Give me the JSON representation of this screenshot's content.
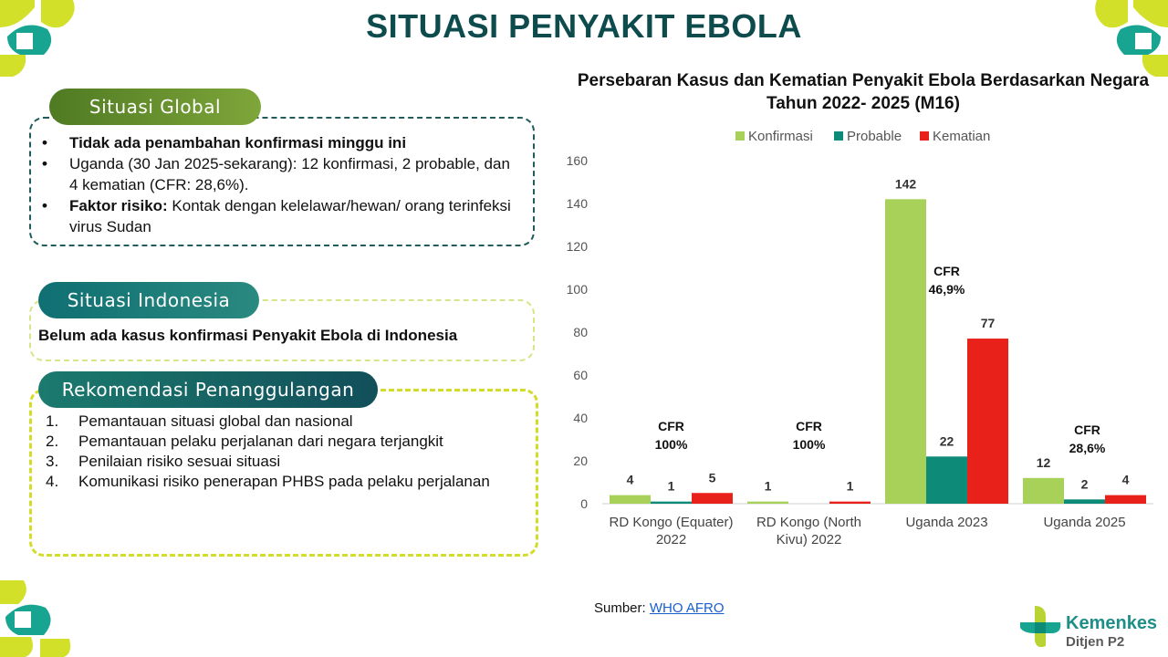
{
  "page_title": "SITUASI PENYAKIT EBOLA",
  "global": {
    "label": "Situasi Global",
    "items": [
      {
        "bold": "Tidak ada penambahan konfirmasi minggu ini",
        "text": ""
      },
      {
        "bold": "",
        "text": "Uganda (30 Jan 2025-sekarang): 12 konfirmasi, 2 probable, dan 4 kematian (CFR: 28,6%)."
      },
      {
        "bold": "Faktor risiko:",
        "text": " Kontak dengan kelelawar/hewan/ orang terinfeksi virus Sudan"
      }
    ]
  },
  "indonesia": {
    "label": "Situasi Indonesia",
    "text": "Belum ada kasus konfirmasi Penyakit Ebola di Indonesia"
  },
  "rekomendasi": {
    "label": "Rekomendasi Penanggulangan",
    "items": [
      {
        "num": "1.",
        "text": "Pemantauan situasi global dan nasional"
      },
      {
        "num": "2.",
        "text": "Pemantauan pelaku perjalanan dari negara terjangkit"
      },
      {
        "num": "3.",
        "text": "Penilaian risiko sesuai situasi"
      },
      {
        "num": "4.",
        "text": "Komunikasi risiko penerapan PHBS pada pelaku perjalanan"
      }
    ]
  },
  "colors": {
    "konfirmasi": "#a8d15a",
    "probable": "#0e8b78",
    "kematian": "#e8221a",
    "title": "#0d4b4d",
    "pill_global": "#6d9532",
    "pill_indonesia": "#1a7a78",
    "pill_rek": "#1f6f6e",
    "border_dark": "#1f5c5a",
    "border_lime": "#d6e58a",
    "border_yellow": "#d4dc2a"
  },
  "chart_data": {
    "type": "bar",
    "title": "Persebaran Kasus dan Kematian Penyakit Ebola Berdasarkan Negara Tahun 2022- 2025 (M16)",
    "categories": [
      [
        "RD Kongo (Equater)",
        "2022"
      ],
      [
        "RD Kongo (North",
        "Kivu) 2022"
      ],
      [
        "Uganda 2023"
      ],
      [
        "Uganda 2025"
      ]
    ],
    "series": [
      {
        "name": "Konfirmasi",
        "values": [
          4,
          1,
          142,
          12
        ],
        "labels": [
          "4",
          "1",
          "142",
          "12"
        ]
      },
      {
        "name": "Probable",
        "values": [
          1,
          0,
          22,
          2
        ],
        "labels": [
          "1",
          "",
          "22",
          "2"
        ]
      },
      {
        "name": "Kematian",
        "values": [
          5,
          1,
          77,
          4
        ],
        "labels": [
          "5",
          "1",
          "77",
          "4"
        ]
      }
    ],
    "annotations": [
      {
        "line1": "CFR",
        "line2": "100%"
      },
      {
        "line1": "CFR",
        "line2": "100%"
      },
      {
        "line1": "CFR",
        "line2": "46,9%"
      },
      {
        "line1": "CFR",
        "line2": "28,6%"
      }
    ],
    "yticks": [
      "0",
      "20",
      "40",
      "60",
      "80",
      "100",
      "120",
      "140",
      "160"
    ],
    "ylim": [
      0,
      160
    ],
    "legend_position": "top",
    "grid": false
  },
  "source": {
    "prefix": "Sumber: ",
    "link": "WHO AFRO"
  },
  "logo": {
    "name": "Kemenkes",
    "sub": "Ditjen P2"
  }
}
